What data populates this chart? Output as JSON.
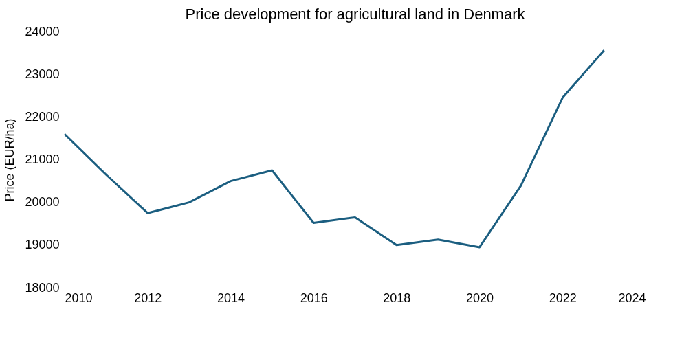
{
  "chart_data": {
    "type": "line",
    "title": "Price development for agricultural land in Denmark",
    "ylabel": "Price (EUR/ha)",
    "x": [
      2010,
      2011,
      2012,
      2013,
      2014,
      2015,
      2016,
      2017,
      2018,
      2019,
      2020,
      2021,
      2022,
      2023
    ],
    "series": [
      {
        "color": "#1b5e80",
        "values": [
          21600,
          20650,
          19750,
          20000,
          20500,
          20750,
          19520,
          19650,
          19000,
          19130,
          18950,
          20400,
          22450,
          23560
        ]
      }
    ],
    "xlim": [
      2010,
      2024
    ],
    "xticks": [
      2010,
      2012,
      2014,
      2016,
      2018,
      2020,
      2022,
      2024
    ],
    "ylim": [
      18000,
      24000
    ],
    "yticks": [
      18000,
      19000,
      20000,
      21000,
      22000,
      23000,
      24000
    ],
    "grid": false,
    "legend": false,
    "marker": "none",
    "line_style": "solid"
  }
}
